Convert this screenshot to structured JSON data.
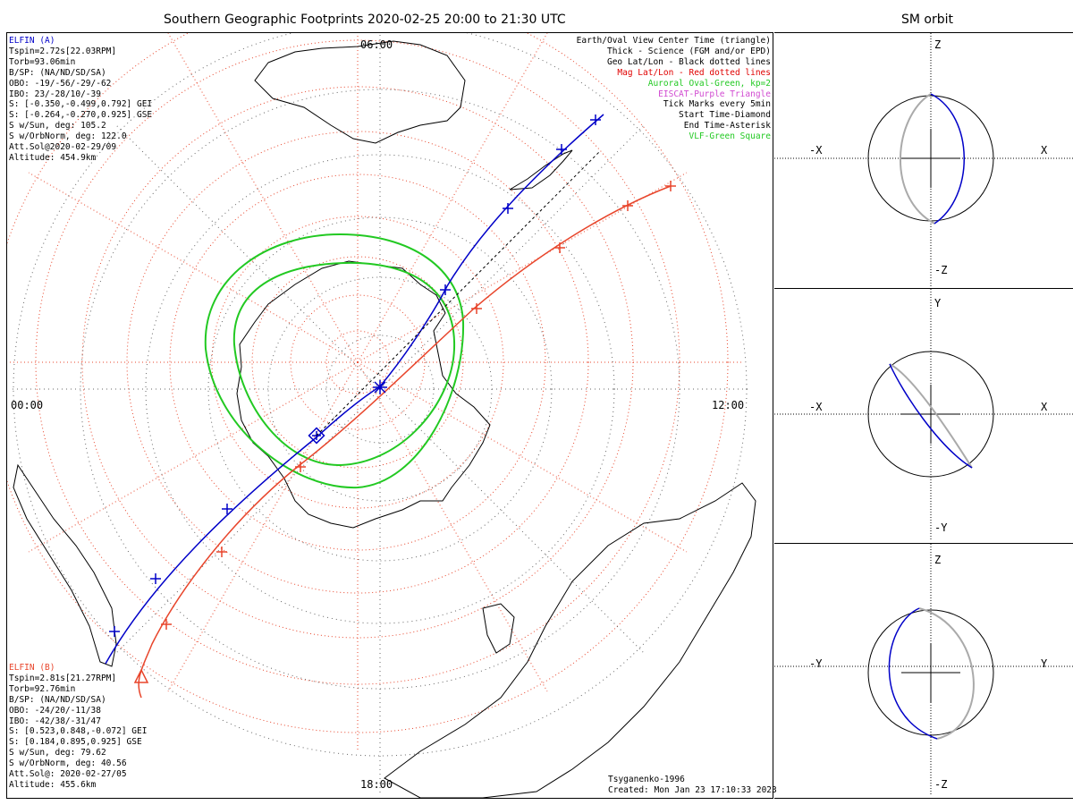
{
  "main": {
    "title": "Southern Geographic Footprints 2020-02-25 20:00 to 21:30 UTC",
    "clock_labels": {
      "top": "06:00",
      "left": "00:00",
      "right": "12:00",
      "bottom": "18:00"
    }
  },
  "elfin_a": {
    "header": "ELFIN (A)",
    "lines": [
      "Tspin=2.72s[22.03RPM]",
      "Torb=93.06min",
      "B/SP: (NA/ND/SD/SA)",
      "OBO: -19/-56/-29/-62",
      "IBO: 23/-28/10/-39",
      "S: [-0.350,-0.499,0.792] GEI",
      "S: [-0.264,-0.270,0.925] GSE",
      "S w/Sun, deg: 105.2",
      "S w/OrbNorm, deg: 122.0",
      "Att.Sol@2020-02-29/09",
      "Altitude: 454.9km"
    ]
  },
  "elfin_b": {
    "header": "ELFIN (B)",
    "lines": [
      "Tspin=2.81s[21.27RPM]",
      "Torb=92.76min",
      "B/SP: (NA/ND/SD/SA)",
      "OBO: -24/20/-11/38",
      "IBO: -42/38/-31/47",
      "S: [0.523,0.848,-0.072] GEI",
      "S: [0.184,0.895,0.925] GSE",
      "S w/Sun, deg: 79.62",
      "S w/OrbNorm, deg: 40.56",
      "Att.Sol@: 2020-02-27/05",
      "Altitude: 455.6km"
    ]
  },
  "legend": {
    "items": [
      {
        "text": "Earth/Oval View Center Time (triangle)",
        "color": "#000000"
      },
      {
        "text": "Thick - Science (FGM and/or EPD)",
        "color": "#000000"
      },
      {
        "text": "Geo Lat/Lon - Black dotted lines",
        "color": "#000000"
      },
      {
        "text": "Mag Lat/Lon - Red dotted lines",
        "color": "#e00000"
      },
      {
        "text": "Auroral Oval-Green, kp=2",
        "color": "#22c922"
      },
      {
        "text": "EISCAT-Purple Triangle",
        "color": "#d14ad1"
      },
      {
        "text": "Tick Marks every 5min",
        "color": "#000000"
      },
      {
        "text": "Start Time-Diamond",
        "color": "#000000"
      },
      {
        "text": "End Time-Asterisk",
        "color": "#000000"
      },
      {
        "text": "VLF-Green Square",
        "color": "#22c922"
      }
    ]
  },
  "footer": {
    "model": "Tsyganenko-1996",
    "created": "Created: Mon Jan 23 17:10:33 2023"
  },
  "sm_orbit": {
    "title": "SM orbit",
    "panels": [
      {
        "top": "Z",
        "bottom": "-Z",
        "left": "-X",
        "right": "X"
      },
      {
        "top": "Y",
        "bottom": "-Y",
        "left": "-X",
        "right": "X"
      },
      {
        "top": "Z",
        "bottom": "-Z",
        "left": "-Y",
        "right": "Y"
      }
    ]
  },
  "colors": {
    "elfin_a": "#0000c8",
    "elfin_b": "#e8452b",
    "oval": "#22c922",
    "grid": "#e8452b"
  }
}
